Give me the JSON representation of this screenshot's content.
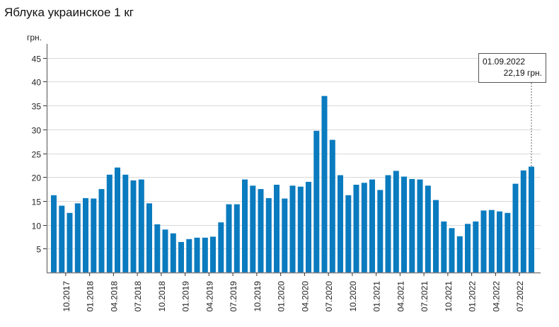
{
  "title": "Яблука украинское 1 кг",
  "y_unit": "грн.",
  "tooltip": {
    "date": "01.09.2022",
    "value": "22,19 грн."
  },
  "colors": {
    "bar": "#0a7bbf",
    "grid": "#d9d9d9",
    "axis": "#808080"
  },
  "chart_data": {
    "type": "bar",
    "title": "Яблука украинское 1 кг",
    "xlabel": "",
    "ylabel": "грн.",
    "ylim": [
      0,
      47
    ],
    "yticks": [
      5,
      10,
      15,
      20,
      25,
      30,
      35,
      40,
      45
    ],
    "grid": true,
    "legend": null,
    "x_tick_labels": [
      "10.2017",
      "01.2018",
      "04.2018",
      "07.2018",
      "10.2018",
      "01.2019",
      "04.2019",
      "07.2019",
      "10.2019",
      "01.2020",
      "04.2020",
      "07.2020",
      "10.2020",
      "01.2021",
      "04.2021",
      "07.2021",
      "10.2021",
      "01.2022",
      "04.2022",
      "07.2022"
    ],
    "categories": [
      "09.2017",
      "10.2017",
      "11.2017",
      "12.2017",
      "01.2018",
      "02.2018",
      "03.2018",
      "04.2018",
      "05.2018",
      "06.2018",
      "07.2018",
      "08.2018",
      "09.2018",
      "10.2018",
      "11.2018",
      "12.2018",
      "01.2019",
      "02.2019",
      "03.2019",
      "04.2019",
      "05.2019",
      "06.2019",
      "07.2019",
      "08.2019",
      "09.2019",
      "10.2019",
      "11.2019",
      "12.2019",
      "01.2020",
      "02.2020",
      "03.2020",
      "04.2020",
      "05.2020",
      "06.2020",
      "07.2020",
      "08.2020",
      "09.2020",
      "10.2020",
      "11.2020",
      "12.2020",
      "01.2021",
      "02.2021",
      "03.2021",
      "04.2021",
      "05.2021",
      "06.2021",
      "07.2021",
      "08.2021",
      "09.2021",
      "10.2021",
      "11.2021",
      "12.2021",
      "01.2022",
      "02.2022",
      "03.2022",
      "04.2022",
      "05.2022",
      "06.2022",
      "07.2022",
      "08.2022",
      "09.2022"
    ],
    "values": [
      16.2,
      14.0,
      12.5,
      14.5,
      15.6,
      15.5,
      17.5,
      20.5,
      22.0,
      20.5,
      19.3,
      19.5,
      14.5,
      10.1,
      9.0,
      8.2,
      6.4,
      7.0,
      7.3,
      7.3,
      7.5,
      10.5,
      14.3,
      14.3,
      19.5,
      18.2,
      17.5,
      15.6,
      18.4,
      15.5,
      18.2,
      18.0,
      19.0,
      29.7,
      37.0,
      27.8,
      20.4,
      16.2,
      18.4,
      18.8,
      19.5,
      17.3,
      20.4,
      21.3,
      20.1,
      19.6,
      19.5,
      18.2,
      15.2,
      10.7,
      9.3,
      7.6,
      10.2,
      10.7,
      13.0,
      13.1,
      12.8,
      12.5,
      18.6,
      21.4,
      22.19
    ],
    "annotation": {
      "date": "01.09.2022",
      "value": 22.19,
      "label": "22,19 грн."
    }
  }
}
